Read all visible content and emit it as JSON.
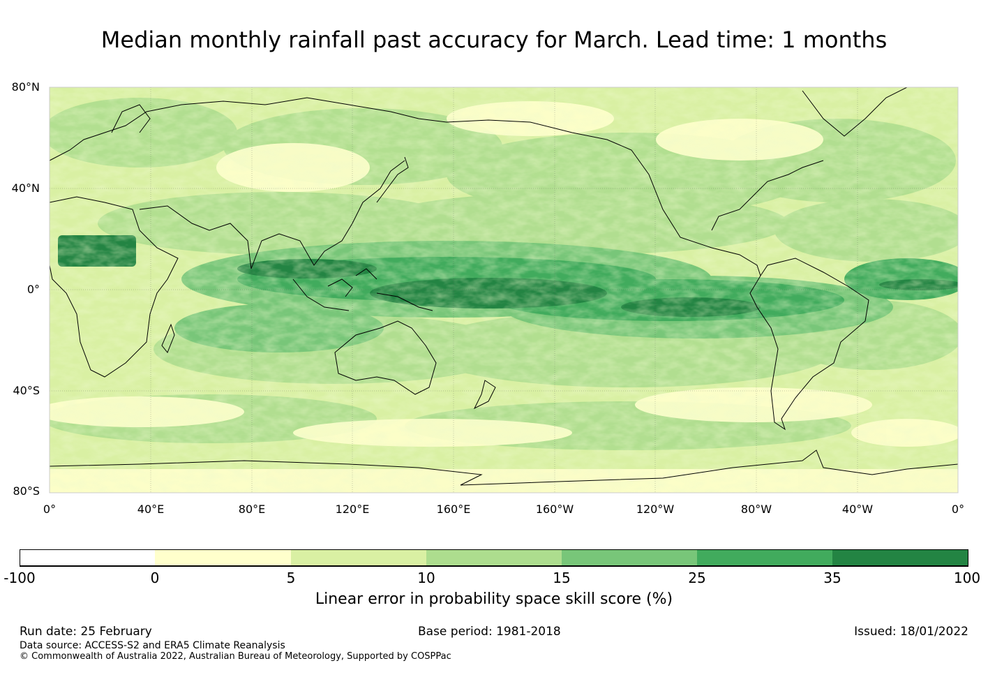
{
  "title": "Median monthly rainfall past accuracy for March. Lead time: 1 months",
  "map": {
    "lat_labels": [
      "80°N",
      "40°N",
      "0°",
      "40°S",
      "80°S"
    ],
    "lon_labels": [
      "0°",
      "40°E",
      "80°E",
      "120°E",
      "160°E",
      "160°W",
      "120°W",
      "80°W",
      "40°W",
      "0°"
    ]
  },
  "colorbar": {
    "ticks": [
      "-100",
      "0",
      "5",
      "10",
      "15",
      "25",
      "35",
      "100"
    ],
    "colors": [
      "#ffffff",
      "#ffffcc",
      "#d9f0a3",
      "#addd8e",
      "#78c679",
      "#41ab5d",
      "#238443"
    ],
    "label": "Linear error in probability space skill score (%)"
  },
  "footer": {
    "run_date": "Run date: 25 February",
    "base_period": "Base period: 1981-2018",
    "issued": "Issued: 18/01/2022",
    "data_source": "Data source: ACCESS-S2 and ERA5 Climate Reanalysis",
    "copyright": "© Commonwealth of Australia 2022, Australian Bureau of Meteorology, Supported by COSPPac"
  }
}
